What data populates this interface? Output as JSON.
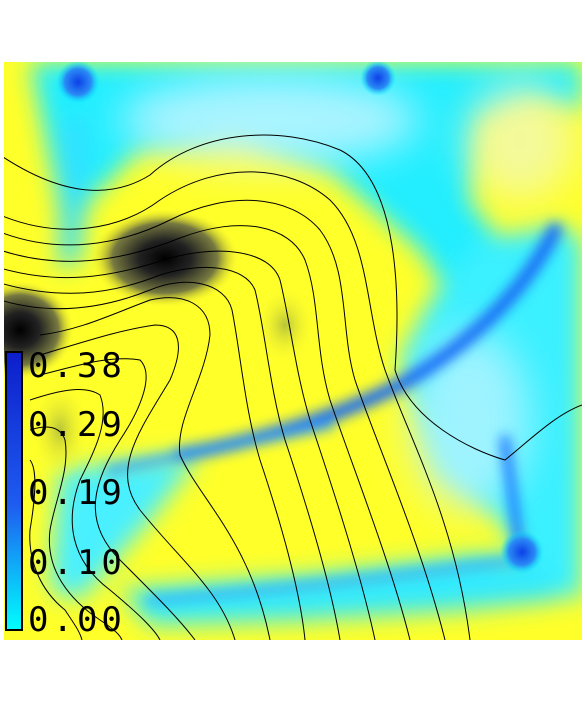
{
  "chart_data": {
    "type": "heatmap",
    "title": "",
    "xlabel": "",
    "ylabel": "",
    "colorbar": {
      "ticks": [
        "0.38",
        "0.29",
        "0.19",
        "0.10",
        "0.00"
      ],
      "values": [
        0.38,
        0.29,
        0.19,
        0.1,
        0.0
      ],
      "range": [
        0.0,
        0.38
      ],
      "colors": [
        "#00ffff",
        "#1e5cf0",
        "#0c1ecb"
      ]
    },
    "colors": {
      "background_field": "#ffff2a",
      "low_field": "#00f0ff",
      "channel": "#1e78ff",
      "dark_spot": "#111111",
      "contour": "#000000"
    },
    "contour_count": 13,
    "grid": false,
    "legend": "colorbar-left"
  }
}
